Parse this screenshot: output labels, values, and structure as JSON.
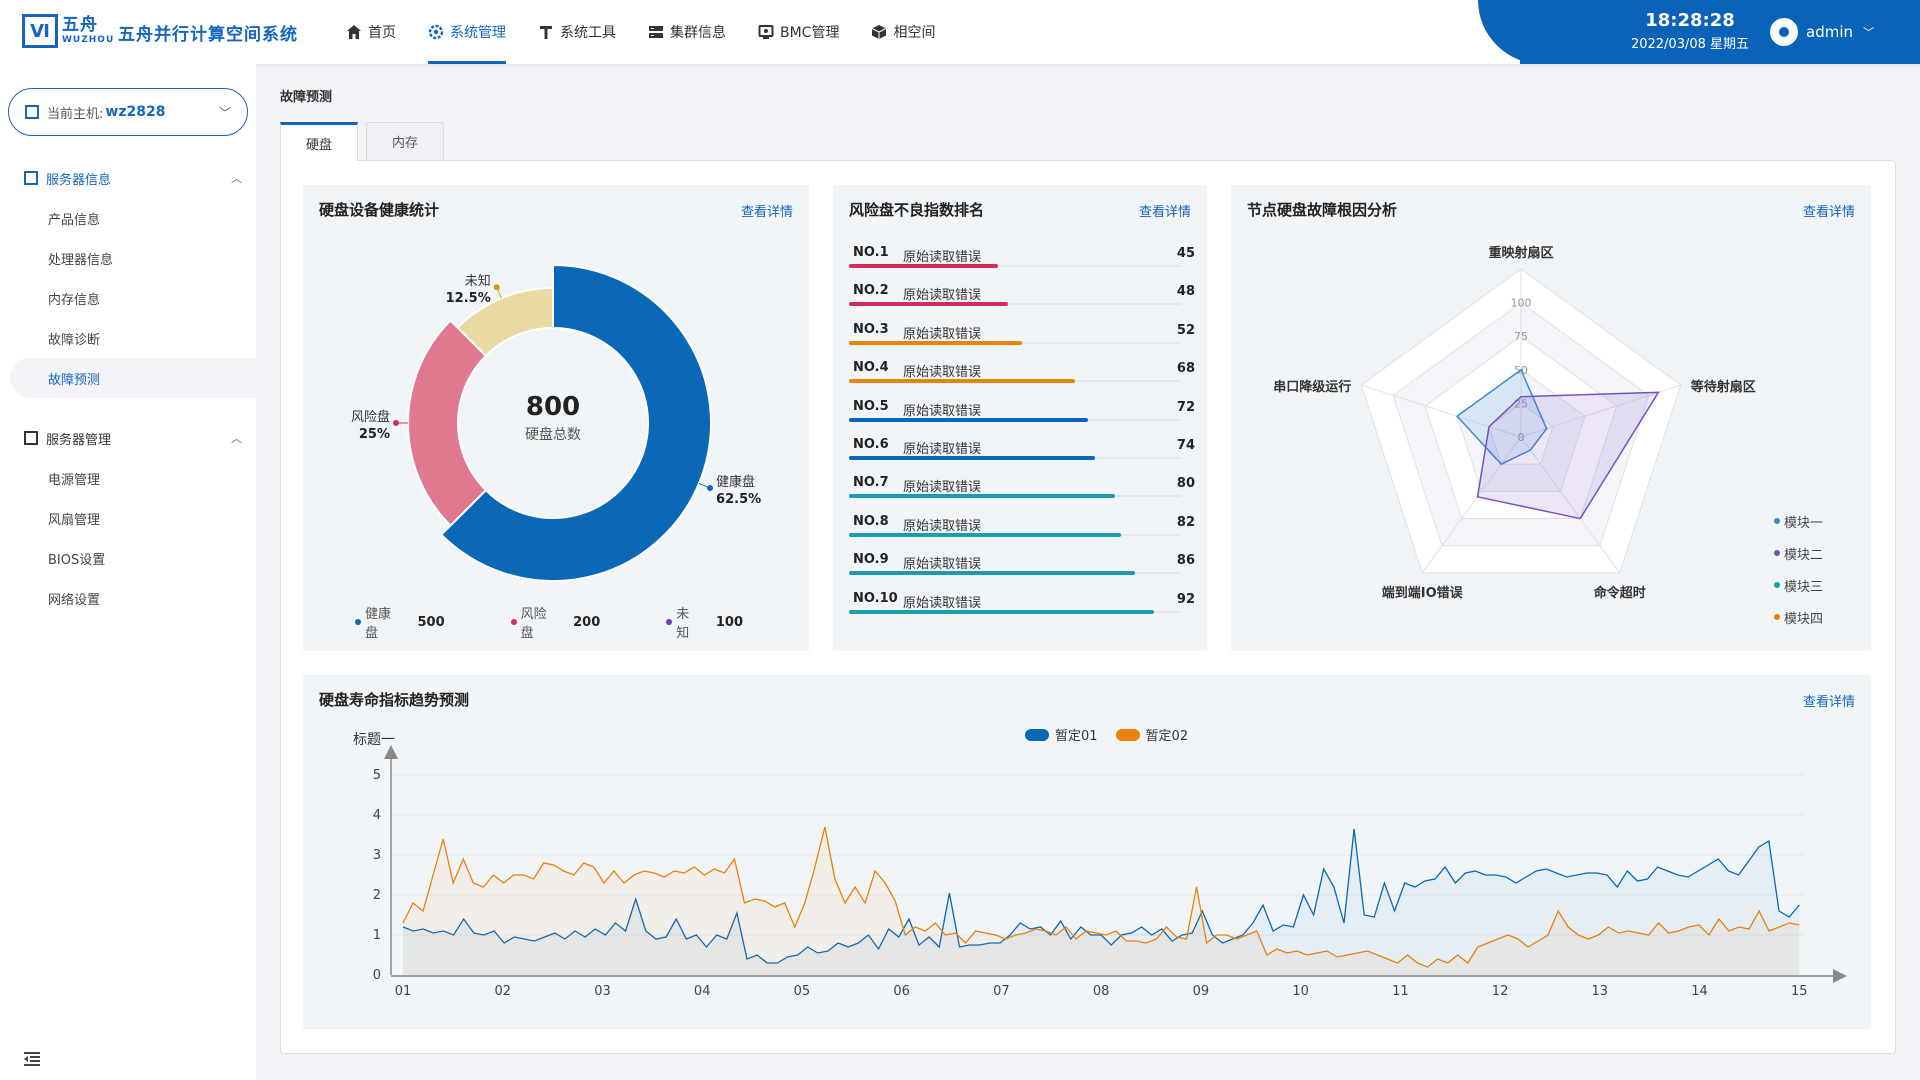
{
  "app": {
    "logo_cn": "五舟",
    "logo_en": "WUZHOU",
    "title": "五舟并行计算空间系统"
  },
  "nav": [
    {
      "label": "首页",
      "icon": "home-icon"
    },
    {
      "label": "系统管理",
      "icon": "gear-icon",
      "active": true
    },
    {
      "label": "系统工具",
      "icon": "tool-icon"
    },
    {
      "label": "集群信息",
      "icon": "server-icon"
    },
    {
      "label": "BMC管理",
      "icon": "monitor-icon"
    },
    {
      "label": "相空间",
      "icon": "cube-icon"
    }
  ],
  "header": {
    "time": "18:28:28",
    "date": "2022/03/08  星期五",
    "user": "admin"
  },
  "sidebar": {
    "host_label": "当前主机:",
    "host_value": "wz2828",
    "group1": {
      "label": "服务器信息",
      "items": [
        "产品信息",
        "处理器信息",
        "内存信息",
        "故障诊断",
        "故障预测"
      ],
      "active_index": 4
    },
    "group2": {
      "label": "服务器管理",
      "items": [
        "电源管理",
        "风扇管理",
        "BIOS设置",
        "网络设置"
      ]
    }
  },
  "page": {
    "title": "故障预测",
    "tabs": [
      "硬盘",
      "内存"
    ]
  },
  "health": {
    "title": "硬盘设备健康统计",
    "link": "查看详情",
    "total": "800",
    "total_label": "硬盘总数",
    "slices": [
      {
        "name": "健康盘",
        "value": 500,
        "pct": "62.5%",
        "color": "#0a68b7"
      },
      {
        "name": "风险盘",
        "value": 200,
        "pct": "25%",
        "color": "#e07890"
      },
      {
        "name": "未知",
        "value": 100,
        "pct": "12.5%",
        "color": "#ead9a0"
      }
    ],
    "legend": [
      {
        "name": "健康盘",
        "value": "500",
        "color": "#0a68b7"
      },
      {
        "name": "风险盘",
        "value": "200",
        "color": "#d22c57"
      },
      {
        "name": "未知",
        "value": "100",
        "color": "#6a3fb5"
      }
    ]
  },
  "ranking": {
    "title": "风险盘不良指数排名",
    "link": "查看详情",
    "max": 100,
    "rows": [
      {
        "no": "NO.1",
        "text": "原始读取错误",
        "value": 45,
        "color": "#d22c57"
      },
      {
        "no": "NO.2",
        "text": "原始读取错误",
        "value": 48,
        "color": "#d22c57"
      },
      {
        "no": "NO.3",
        "text": "原始读取错误",
        "value": 52,
        "color": "#e8820c"
      },
      {
        "no": "NO.4",
        "text": "原始读取错误",
        "value": 68,
        "color": "#e8820c"
      },
      {
        "no": "NO.5",
        "text": "原始读取错误",
        "value": 72,
        "color": "#0a68b7"
      },
      {
        "no": "NO.6",
        "text": "原始读取错误",
        "value": 74,
        "color": "#0a68b7"
      },
      {
        "no": "NO.7",
        "text": "原始读取错误",
        "value": 80,
        "color": "#1a9bb0"
      },
      {
        "no": "NO.8",
        "text": "原始读取错误",
        "value": 82,
        "color": "#1a9bb0"
      },
      {
        "no": "NO.9",
        "text": "原始读取错误",
        "value": 86,
        "color": "#1a9bb0"
      },
      {
        "no": "NO.10",
        "text": "原始读取错误",
        "value": 92,
        "color": "#1a9bb0"
      }
    ]
  },
  "radar": {
    "title": "节点硬盘故障根因分析",
    "link": "查看详情",
    "indicators": [
      "重映射扇区",
      "等待射扇区",
      "命令超时",
      "端到端IO错误",
      "串口降级运行"
    ],
    "ticks": [
      "0",
      "25",
      "50",
      "75",
      "100"
    ],
    "series": [
      {
        "name": "模块一",
        "values": [
          50,
          20,
          12,
          25,
          50
        ],
        "color": "#3a8ad8"
      },
      {
        "name": "模块二",
        "values": [
          30,
          95,
          75,
          55,
          25
        ],
        "color": "#7b4fc0"
      },
      {
        "name": "模块三",
        "values": [
          0,
          0,
          0,
          0,
          0
        ],
        "color": "#1aa5a5"
      },
      {
        "name": "模块四",
        "values": [
          0,
          0,
          0,
          0,
          0
        ],
        "color": "#e8820c"
      }
    ]
  },
  "chart_data": {
    "type": "line",
    "title": "硬盘寿命指标趋势预测",
    "link": "查看详情",
    "ylabel": "标题一",
    "ylim": [
      0,
      5
    ],
    "yticks": [
      "0",
      "1",
      "2",
      "3",
      "4",
      "5"
    ],
    "xticks": [
      "01",
      "02",
      "03",
      "04",
      "05",
      "06",
      "07",
      "08",
      "09",
      "10",
      "11",
      "12",
      "13",
      "14",
      "15"
    ],
    "series": [
      {
        "name": "暂定01",
        "color": "#0a68b7",
        "values": [
          1.2,
          1.1,
          1.15,
          1.05,
          1.1,
          1.0,
          1.4,
          1.05,
          1.0,
          1.1,
          0.8,
          0.95,
          0.9,
          0.85,
          0.95,
          1.05,
          0.9,
          1.1,
          0.95,
          1.15,
          1.0,
          1.3,
          1.1,
          1.9,
          1.1,
          0.9,
          0.95,
          1.4,
          0.9,
          1.0,
          0.7,
          1.0,
          0.9,
          1.55,
          0.4,
          0.5,
          0.3,
          0.3,
          0.45,
          0.5,
          0.7,
          0.55,
          0.6,
          0.8,
          0.7,
          0.8,
          1.0,
          0.65,
          1.15,
          0.95,
          1.4,
          0.75,
          0.95,
          0.7,
          2.05,
          0.7,
          0.75,
          0.75,
          0.8,
          0.8,
          1.0,
          1.3,
          1.15,
          1.2,
          1.0,
          1.35,
          0.9,
          1.2,
          1.0,
          1.0,
          0.75,
          1.0,
          1.05,
          1.2,
          1.0,
          1.15,
          0.85,
          1.0,
          1.05,
          1.6,
          1.0,
          0.8,
          0.9,
          1.0,
          1.3,
          1.75,
          1.1,
          1.25,
          1.2,
          2.0,
          1.5,
          2.65,
          2.2,
          1.3,
          3.65,
          1.5,
          1.45,
          2.3,
          1.6,
          2.3,
          2.2,
          2.35,
          2.4,
          2.7,
          2.3,
          2.55,
          2.6,
          2.5,
          2.5,
          2.45,
          2.3,
          2.45,
          2.6,
          2.65,
          2.55,
          2.45,
          2.5,
          2.55,
          2.55,
          2.5,
          2.2,
          2.6,
          2.35,
          2.4,
          2.7,
          2.6,
          2.5,
          2.45,
          2.6,
          2.75,
          2.9,
          2.6,
          2.5,
          2.85,
          3.2,
          3.35,
          1.6,
          1.45,
          1.75
        ]
      },
      {
        "name": "暂定02",
        "color": "#e8820c",
        "values": [
          1.3,
          1.8,
          1.6,
          2.5,
          3.4,
          2.3,
          2.9,
          2.3,
          2.2,
          2.5,
          2.3,
          2.5,
          2.5,
          2.4,
          2.8,
          2.75,
          2.6,
          2.5,
          2.8,
          2.7,
          2.3,
          2.6,
          2.3,
          2.5,
          2.6,
          2.55,
          2.45,
          2.6,
          2.55,
          2.7,
          2.5,
          2.65,
          2.55,
          2.9,
          1.8,
          1.9,
          1.85,
          1.7,
          1.8,
          1.2,
          1.8,
          2.7,
          3.7,
          2.4,
          1.8,
          2.2,
          1.8,
          2.6,
          2.3,
          1.85,
          1.0,
          1.2,
          1.1,
          1.3,
          1.0,
          1.05,
          0.8,
          1.1,
          1.05,
          1.0,
          0.9,
          1.0,
          1.05,
          1.15,
          1.1,
          1.0,
          1.2,
          0.9,
          1.1,
          1.05,
          1.0,
          1.1,
          0.85,
          0.85,
          0.8,
          0.9,
          1.2,
          0.95,
          0.9,
          2.2,
          0.8,
          1.0,
          1.0,
          0.9,
          1.0,
          1.1,
          0.5,
          0.65,
          0.55,
          0.6,
          0.5,
          0.55,
          0.6,
          0.45,
          0.5,
          0.55,
          0.6,
          0.5,
          0.4,
          0.3,
          0.5,
          0.3,
          0.2,
          0.4,
          0.3,
          0.5,
          0.3,
          0.7,
          0.8,
          0.9,
          1.0,
          0.9,
          0.7,
          0.85,
          1.0,
          1.6,
          1.2,
          1.0,
          0.9,
          1.0,
          1.2,
          1.05,
          1.1,
          1.05,
          1.0,
          1.3,
          1.05,
          1.1,
          1.2,
          1.25,
          1.0,
          1.4,
          1.1,
          1.2,
          1.15,
          1.6,
          1.1,
          1.2,
          1.3,
          1.25
        ]
      }
    ]
  }
}
